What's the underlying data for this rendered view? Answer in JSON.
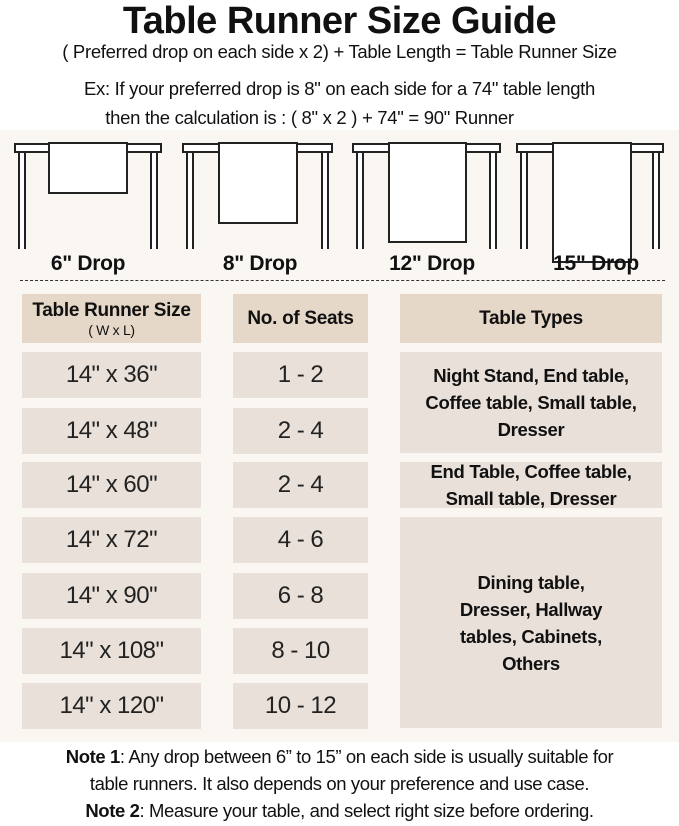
{
  "title": "Table Runner Size Guide",
  "formula": "( Preferred drop on each side x 2) + Table Length = Table Runner Size",
  "example_line1": "Ex: If your preferred drop is 8\" on each side for a 74\" table length",
  "example_line2": "then the calculation is : ( 8\" x 2 ) + 74\" = 90\" Runner",
  "drops": [
    {
      "label": "6\" Drop",
      "inches": 6
    },
    {
      "label": "8\" Drop",
      "inches": 8
    },
    {
      "label": "12\" Drop",
      "inches": 12
    },
    {
      "label": "15\" Drop",
      "inches": 15
    }
  ],
  "table": {
    "headers": {
      "size": "Table Runner Size",
      "size_sub": "( W x L)",
      "seats": "No. of Seats",
      "types": "Table Types"
    },
    "rows": [
      {
        "size": "14\" x 36\"",
        "seats": "1 - 2"
      },
      {
        "size": "14\" x 48\"",
        "seats": "2 - 4"
      },
      {
        "size": "14\" x 60\"",
        "seats": "2 - 4"
      },
      {
        "size": "14\" x 72\"",
        "seats": "4 - 6"
      },
      {
        "size": "14\" x 90\"",
        "seats": "6 - 8"
      },
      {
        "size": "14\" x 108\"",
        "seats": "8 - 10"
      },
      {
        "size": "14\" x 120\"",
        "seats": "10 - 12"
      }
    ],
    "type_groups": [
      {
        "text": "Night Stand, End table, Coffee table, Small table, Dresser"
      },
      {
        "text": "End Table, Coffee table, Small table, Dresser"
      },
      {
        "text": "Dining table, Dresser, Hallway tables, Cabinets, Others"
      }
    ]
  },
  "notes": {
    "note1_label": "Note 1",
    "note1_text": ": Any drop between 6” to 15” on each side is usually suitable for",
    "note1_text2": "table runners. It also depends on your preference and use case.",
    "note2_label": "Note 2",
    "note2_text": ": Measure your table, and select right size before ordering."
  },
  "colors": {
    "header_cell": "#e6d8c8",
    "body_cell": "#e8e0d9",
    "background": "#faf6f2"
  }
}
